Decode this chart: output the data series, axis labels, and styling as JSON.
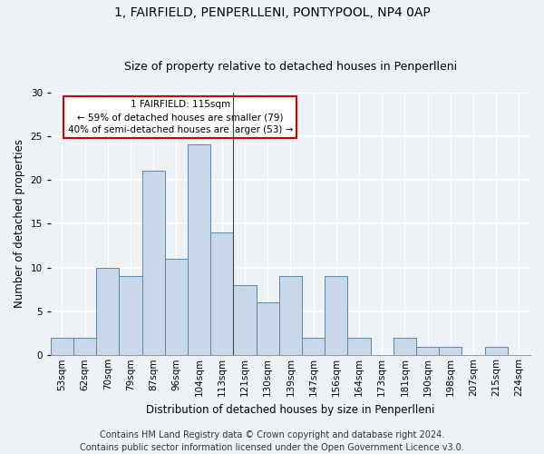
{
  "title": "1, FAIRFIELD, PENPERLLENI, PONTYPOOL, NP4 0AP",
  "subtitle": "Size of property relative to detached houses in Penperlleni",
  "xlabel": "Distribution of detached houses by size in Penperlleni",
  "ylabel": "Number of detached properties",
  "bar_color": "#c8d8e8",
  "bar_edge_color": "#5588aa",
  "categories": [
    "53sqm",
    "62sqm",
    "70sqm",
    "79sqm",
    "87sqm",
    "96sqm",
    "104sqm",
    "113sqm",
    "121sqm",
    "130sqm",
    "139sqm",
    "147sqm",
    "156sqm",
    "164sqm",
    "173sqm",
    "181sqm",
    "190sqm",
    "198sqm",
    "207sqm",
    "215sqm",
    "224sqm"
  ],
  "values": [
    2,
    2,
    10,
    9,
    21,
    11,
    24,
    14,
    8,
    6,
    9,
    2,
    9,
    2,
    0,
    2,
    1,
    1,
    0,
    1,
    0
  ],
  "ylim": [
    0,
    30
  ],
  "yticks": [
    0,
    5,
    10,
    15,
    20,
    25,
    30
  ],
  "property_bar_index": 7,
  "annotation_text_line1": "1 FAIRFIELD: 115sqm",
  "annotation_text_line2": "← 59% of detached houses are smaller (79)",
  "annotation_text_line3": "40% of semi-detached houses are larger (53) →",
  "annotation_box_color": "#ffffff",
  "annotation_box_edge_color": "#cc0000",
  "footer_line1": "Contains HM Land Registry data © Crown copyright and database right 2024.",
  "footer_line2": "Contains public sector information licensed under the Open Government Licence v3.0.",
  "background_color": "#eef2f7",
  "grid_color": "#ffffff",
  "title_fontsize": 10,
  "subtitle_fontsize": 9,
  "axis_label_fontsize": 8.5,
  "tick_fontsize": 7.5,
  "annotation_fontsize": 7.5,
  "footer_fontsize": 7
}
